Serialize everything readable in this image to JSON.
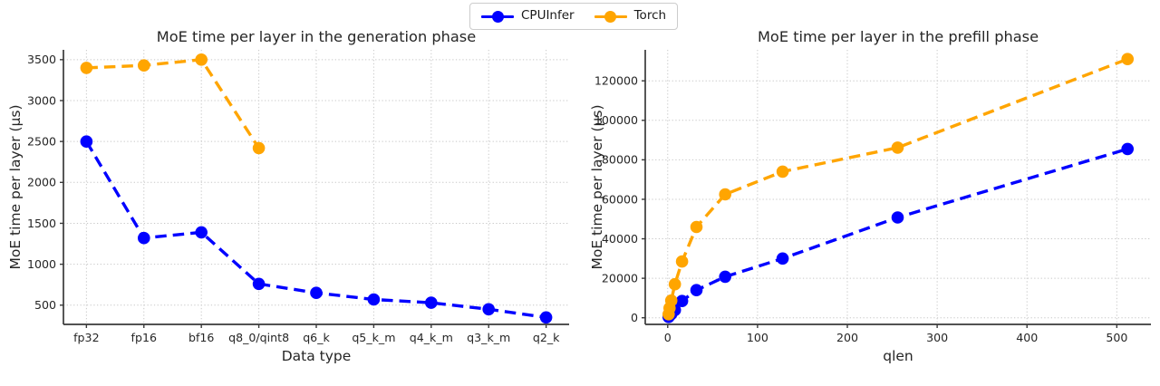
{
  "figure": {
    "background": "#ffffff",
    "grid_color": "#c8c8c8",
    "spine_color": "#3a3a3a",
    "text_color": "#262626"
  },
  "legend": {
    "items": [
      {
        "label": "CPUInfer",
        "color": "#0000ff"
      },
      {
        "label": "Torch",
        "color": "#ffa500"
      }
    ],
    "position": "top-center"
  },
  "chart_data": [
    {
      "type": "line",
      "title": "MoE time per layer in the generation phase",
      "xlabel": "Data type",
      "ylabel": "MoE time per layer (µs)",
      "categories": [
        "fp32",
        "fp16",
        "bf16",
        "q8_0/qint8",
        "q6_k",
        "q5_k_m",
        "q4_k_m",
        "q3_k_m",
        "q2_k"
      ],
      "series": [
        {
          "name": "CPUInfer",
          "color": "#0000ff",
          "values": [
            2500,
            1320,
            1390,
            760,
            650,
            570,
            530,
            450,
            350
          ]
        },
        {
          "name": "Torch",
          "color": "#ffa500",
          "values": [
            3400,
            3430,
            3500,
            2420,
            null,
            null,
            null,
            null,
            null
          ]
        }
      ],
      "yticks": [
        500,
        1000,
        1500,
        2000,
        2500,
        3000,
        3500
      ],
      "xlim": [
        -0.4,
        8.4
      ],
      "ylim": [
        265,
        3620
      ],
      "grid": true,
      "line_style": "dashed",
      "marker": "circle",
      "legend_position": "figure-top-center"
    },
    {
      "type": "line",
      "title": "MoE time per layer in the prefill phase",
      "xlabel": "qlen",
      "ylabel": "MoE time per layer (µs)",
      "x": [
        1,
        2,
        4,
        8,
        16,
        32,
        64,
        128,
        256,
        512
      ],
      "series": [
        {
          "name": "CPUInfer",
          "color": "#0000ff",
          "values": [
            400,
            1000,
            1900,
            3900,
            8500,
            14000,
            20800,
            30000,
            50800,
            85500
          ]
        },
        {
          "name": "Torch",
          "color": "#ffa500",
          "values": [
            1800,
            4900,
            8700,
            17000,
            28500,
            46000,
            62500,
            74000,
            86200,
            131000
          ]
        }
      ],
      "xticks": [
        0,
        100,
        200,
        300,
        400,
        500
      ],
      "yticks": [
        0,
        20000,
        40000,
        60000,
        80000,
        100000,
        120000
      ],
      "xlim": [
        -25,
        538
      ],
      "ylim": [
        -3350,
        135700
      ],
      "grid": true,
      "line_style": "dashed",
      "marker": "circle",
      "legend_position": "figure-top-center"
    }
  ]
}
